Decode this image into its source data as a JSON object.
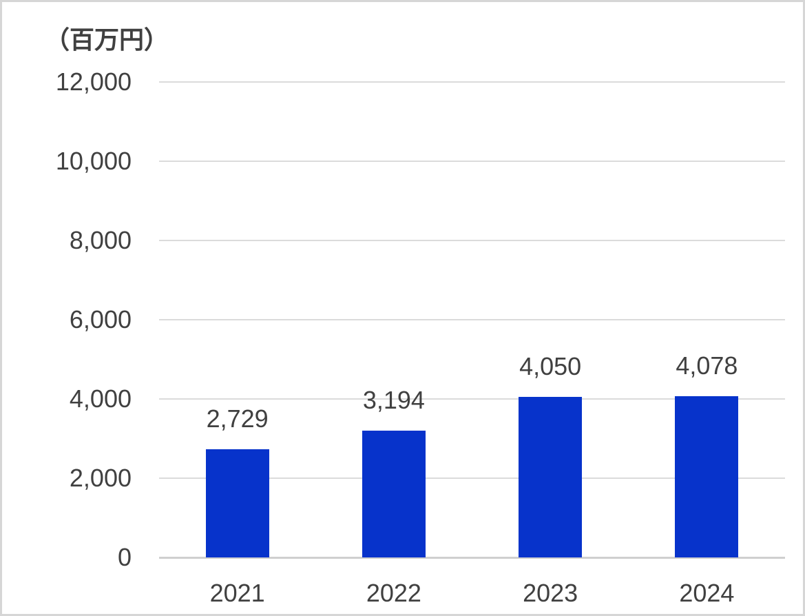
{
  "chart_data": {
    "type": "bar",
    "title": "",
    "unit_label": "（百万円）",
    "categories": [
      "2021",
      "2022",
      "2023",
      "2024"
    ],
    "values": [
      2729,
      3194,
      4050,
      4078
    ],
    "value_labels": [
      "2,729",
      "3,194",
      "4,050",
      "4,078"
    ],
    "ylim": [
      0,
      12000
    ],
    "yticks": [
      0,
      2000,
      4000,
      6000,
      8000,
      10000,
      12000
    ],
    "ytick_labels": [
      "0",
      "2,000",
      "4,000",
      "6,000",
      "8,000",
      "10,000",
      "12,000"
    ],
    "grid": true,
    "legend": false,
    "xlabel": "",
    "ylabel": "",
    "colors": {
      "bar": "#0733CB",
      "text": "#404040",
      "gridline": "#DBDBDB",
      "axis_line": "#CFCFCF",
      "frame_border": "#D6D6D6",
      "background": "#FFFFFF"
    }
  }
}
